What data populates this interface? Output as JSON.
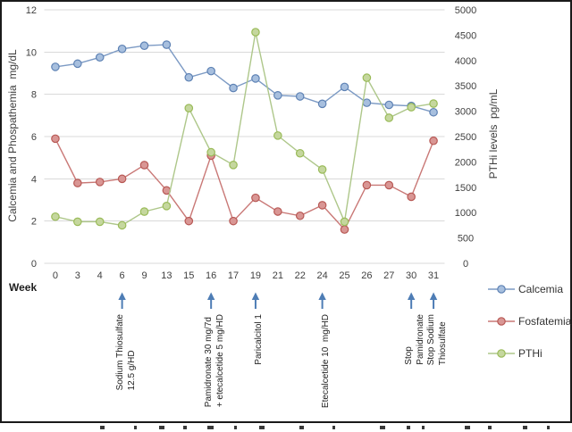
{
  "chart_data": {
    "type": "line",
    "xlabel": "Week",
    "categories": [
      0,
      3,
      4,
      6,
      9,
      13,
      15,
      16,
      17,
      19,
      21,
      22,
      24,
      25,
      26,
      27,
      30,
      31
    ],
    "grid": true,
    "legend_position": "right",
    "left_axis": {
      "title": "Calcemia and Phospathemia  mg/dL",
      "min": 0,
      "max": 12,
      "ticks": [
        0,
        2,
        4,
        6,
        8,
        10,
        12
      ]
    },
    "right_axis": {
      "title": "PTHi levels  pg/mL",
      "min": 0,
      "max": 5000,
      "ticks": [
        0,
        500,
        1000,
        1500,
        2000,
        2500,
        3000,
        3500,
        4000,
        4500,
        5000
      ]
    },
    "series": [
      {
        "name": "Calcemia",
        "axis": "left",
        "line_color": "#7C9AC4",
        "marker_fill": "#A7BFDE",
        "marker_stroke": "#5E82B4",
        "values": [
          9.3,
          9.45,
          9.75,
          10.15,
          10.3,
          10.35,
          8.8,
          9.1,
          8.3,
          8.75,
          7.95,
          7.9,
          7.55,
          8.35,
          7.6,
          7.5,
          7.45,
          7.15
        ]
      },
      {
        "name": "Fosfatemia",
        "axis": "left",
        "line_color": "#C97876",
        "marker_fill": "#D99694",
        "marker_stroke": "#B85955",
        "values": [
          5.9,
          3.8,
          3.85,
          4.0,
          4.65,
          3.45,
          2.0,
          5.1,
          2.0,
          3.1,
          2.45,
          2.25,
          2.75,
          1.6,
          3.7,
          3.7,
          3.15,
          5.8
        ]
      },
      {
        "name": "PTHi",
        "axis": "right",
        "line_color": "#AEC78A",
        "marker_fill": "#C5D79E",
        "marker_stroke": "#9ABB59",
        "values": [
          920,
          820,
          820,
          750,
          1020,
          1130,
          3060,
          2190,
          1940,
          4560,
          2520,
          2170,
          1850,
          820,
          3660,
          2870,
          3080,
          3150
        ]
      }
    ],
    "annotations": [
      {
        "week": 6,
        "lines": [
          "Sodium Thiosulfate",
          "12.5 g/HD"
        ]
      },
      {
        "week": 16,
        "lines": [
          "Pamidronate 30 mg/7d",
          "+ etecalcetide 5 mg/HD"
        ]
      },
      {
        "week": 19,
        "lines": [
          "Paricalcitol 1"
        ]
      },
      {
        "week": 24,
        "lines": [
          "Etecalcetide 10  mg/HD"
        ]
      },
      {
        "week": 30,
        "lines": [
          "Stop",
          "Pamidronate"
        ]
      },
      {
        "week": 31,
        "lines": [
          "Stop Sodium",
          "Thiosulfate"
        ]
      }
    ],
    "annotation_arrow_color": "#4E7DB5",
    "colors": {
      "gridline": "#D9D9D9",
      "tick_text": "#404040"
    }
  },
  "legend": {
    "items": [
      "Calcemia",
      "Fosfatemia",
      "PTHi"
    ]
  }
}
